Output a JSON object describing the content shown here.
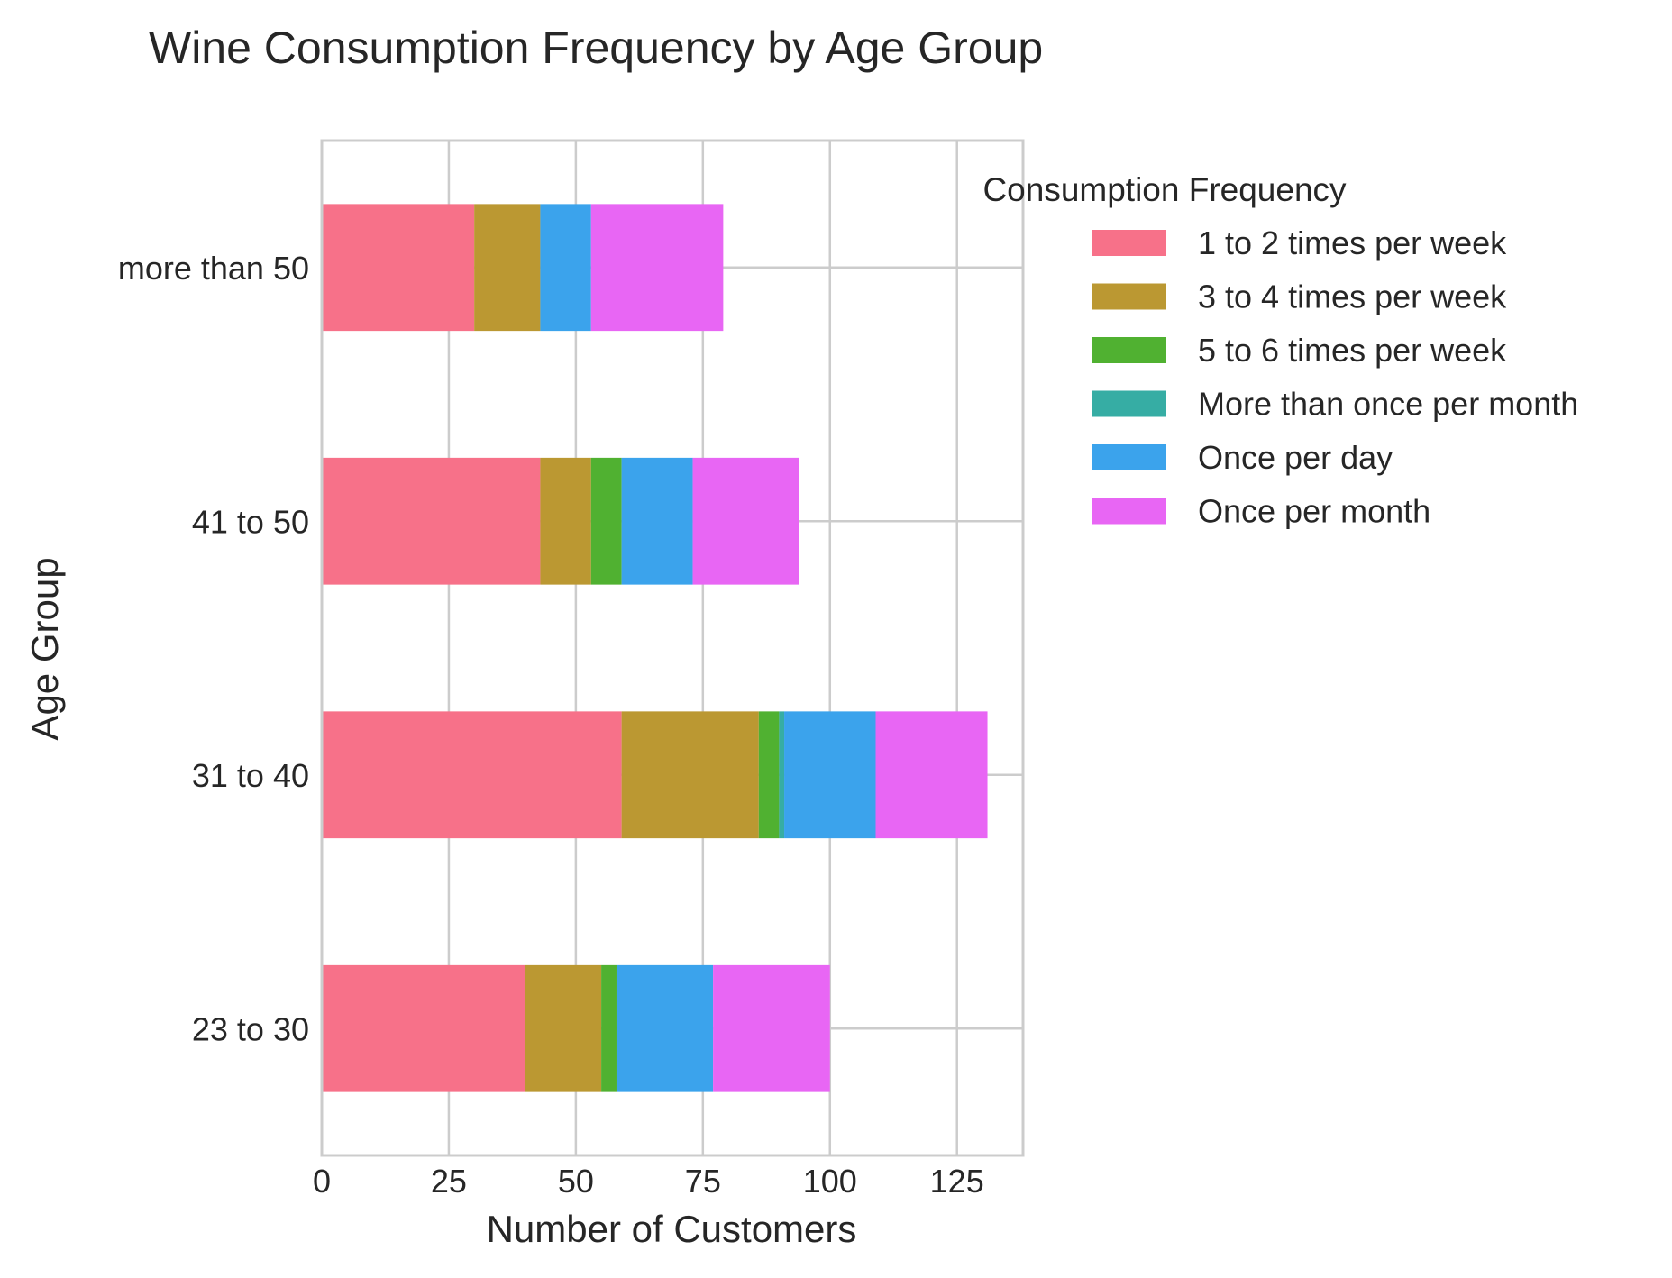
{
  "chart_data": {
    "type": "bar",
    "orientation": "horizontal",
    "stacked": true,
    "title": "Wine Consumption Frequency by Age Group",
    "xlabel": "Number of Customers",
    "ylabel": "Age Group",
    "categories": [
      "23 to 30",
      "31 to 40",
      "41 to 50",
      "more than 50"
    ],
    "xlim": [
      0,
      138
    ],
    "xticks": [
      0,
      25,
      50,
      75,
      100,
      125
    ],
    "grid": true,
    "legend": {
      "title": "Consumption Frequency",
      "placement": "outside-right-top"
    },
    "series": [
      {
        "name": "1 to 2 times per week",
        "color": "#f77189",
        "values": [
          40,
          59,
          43,
          30
        ]
      },
      {
        "name": "3 to 4 times per week",
        "color": "#bb9832",
        "values": [
          15,
          27,
          10,
          13
        ]
      },
      {
        "name": "5 to 6 times per week",
        "color": "#50b131",
        "values": [
          3,
          4,
          6,
          0
        ]
      },
      {
        "name": "More than once per month",
        "color": "#36ada4",
        "values": [
          0,
          1,
          0,
          0
        ]
      },
      {
        "name": "Once per day",
        "color": "#3ba3ec",
        "values": [
          19,
          18,
          14,
          10
        ]
      },
      {
        "name": "Once per month",
        "color": "#e866f4",
        "values": [
          23,
          22,
          21,
          26
        ]
      }
    ]
  }
}
